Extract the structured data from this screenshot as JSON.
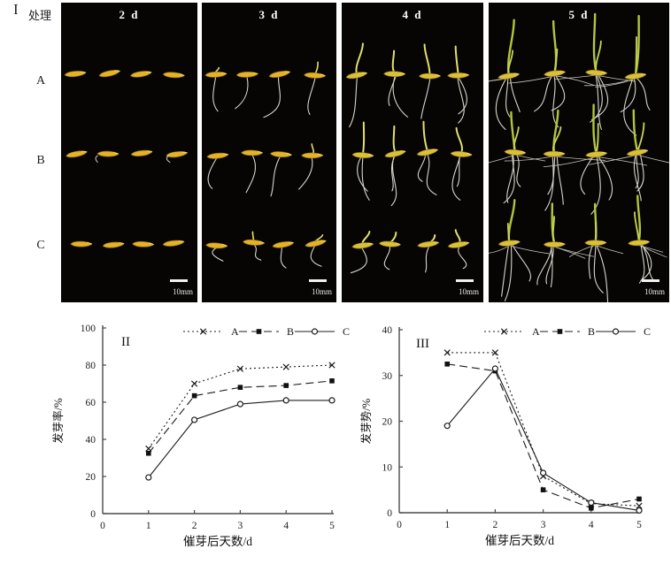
{
  "figure": {
    "section1": {
      "panel_label": "I",
      "treatment_label": "处理",
      "row_labels": [
        "A",
        "B",
        "C"
      ],
      "day_labels": [
        "2 d",
        "3 d",
        "4 d",
        "5 d"
      ],
      "scale_bar_label": "10mm"
    },
    "colors": {
      "panel_background": "#060504",
      "seed": "#e3b226",
      "seed_late": "#d9c137",
      "root": "#d6d6cc",
      "lateral_root": "#c2c2ba",
      "shoot_young": "#e0e070",
      "shoot": "#b3c53c",
      "axis": "#4a4a4a",
      "data_line": "#1c1c1c"
    }
  },
  "chart_data": [
    {
      "id": "II",
      "type": "line",
      "title": "II",
      "x": [
        1,
        2,
        3,
        4,
        5
      ],
      "xticks": [
        0,
        1,
        2,
        3,
        4,
        5
      ],
      "yticks": [
        0,
        20,
        40,
        60,
        80,
        100
      ],
      "xlim": [
        0,
        5
      ],
      "ylim": [
        0,
        100
      ],
      "xlabel": "催芽后天数/d",
      "ylabel": "发芽率/%",
      "grid": "off",
      "legend_position": "top",
      "series": [
        {
          "name": "A",
          "style": "dotted",
          "marker": "x",
          "values": [
            35,
            70,
            78,
            79,
            80
          ]
        },
        {
          "name": "B",
          "style": "dashed",
          "marker": "square",
          "values": [
            32.5,
            63.5,
            68,
            69,
            71.5
          ]
        },
        {
          "name": "C",
          "style": "solid",
          "marker": "circle",
          "values": [
            19.5,
            50.5,
            59,
            61,
            61
          ]
        }
      ]
    },
    {
      "id": "III",
      "type": "line",
      "title": "III",
      "x": [
        1,
        2,
        3,
        4,
        5
      ],
      "xticks": [
        0,
        1,
        2,
        3,
        4,
        5
      ],
      "yticks": [
        0,
        10,
        20,
        30,
        40
      ],
      "xlim": [
        0,
        5
      ],
      "ylim": [
        0,
        40
      ],
      "xlabel": "催芽后天数/d",
      "ylabel": "发芽势/%",
      "grid": "off",
      "legend_position": "top",
      "series": [
        {
          "name": "A",
          "style": "dotted",
          "marker": "x",
          "values": [
            35,
            35,
            8,
            2,
            1.5
          ]
        },
        {
          "name": "B",
          "style": "dashed",
          "marker": "square",
          "values": [
            32.5,
            31,
            5,
            1,
            3
          ]
        },
        {
          "name": "C",
          "style": "solid",
          "marker": "circle",
          "values": [
            19,
            31.5,
            8.7,
            2.2,
            0.5
          ]
        }
      ]
    }
  ]
}
